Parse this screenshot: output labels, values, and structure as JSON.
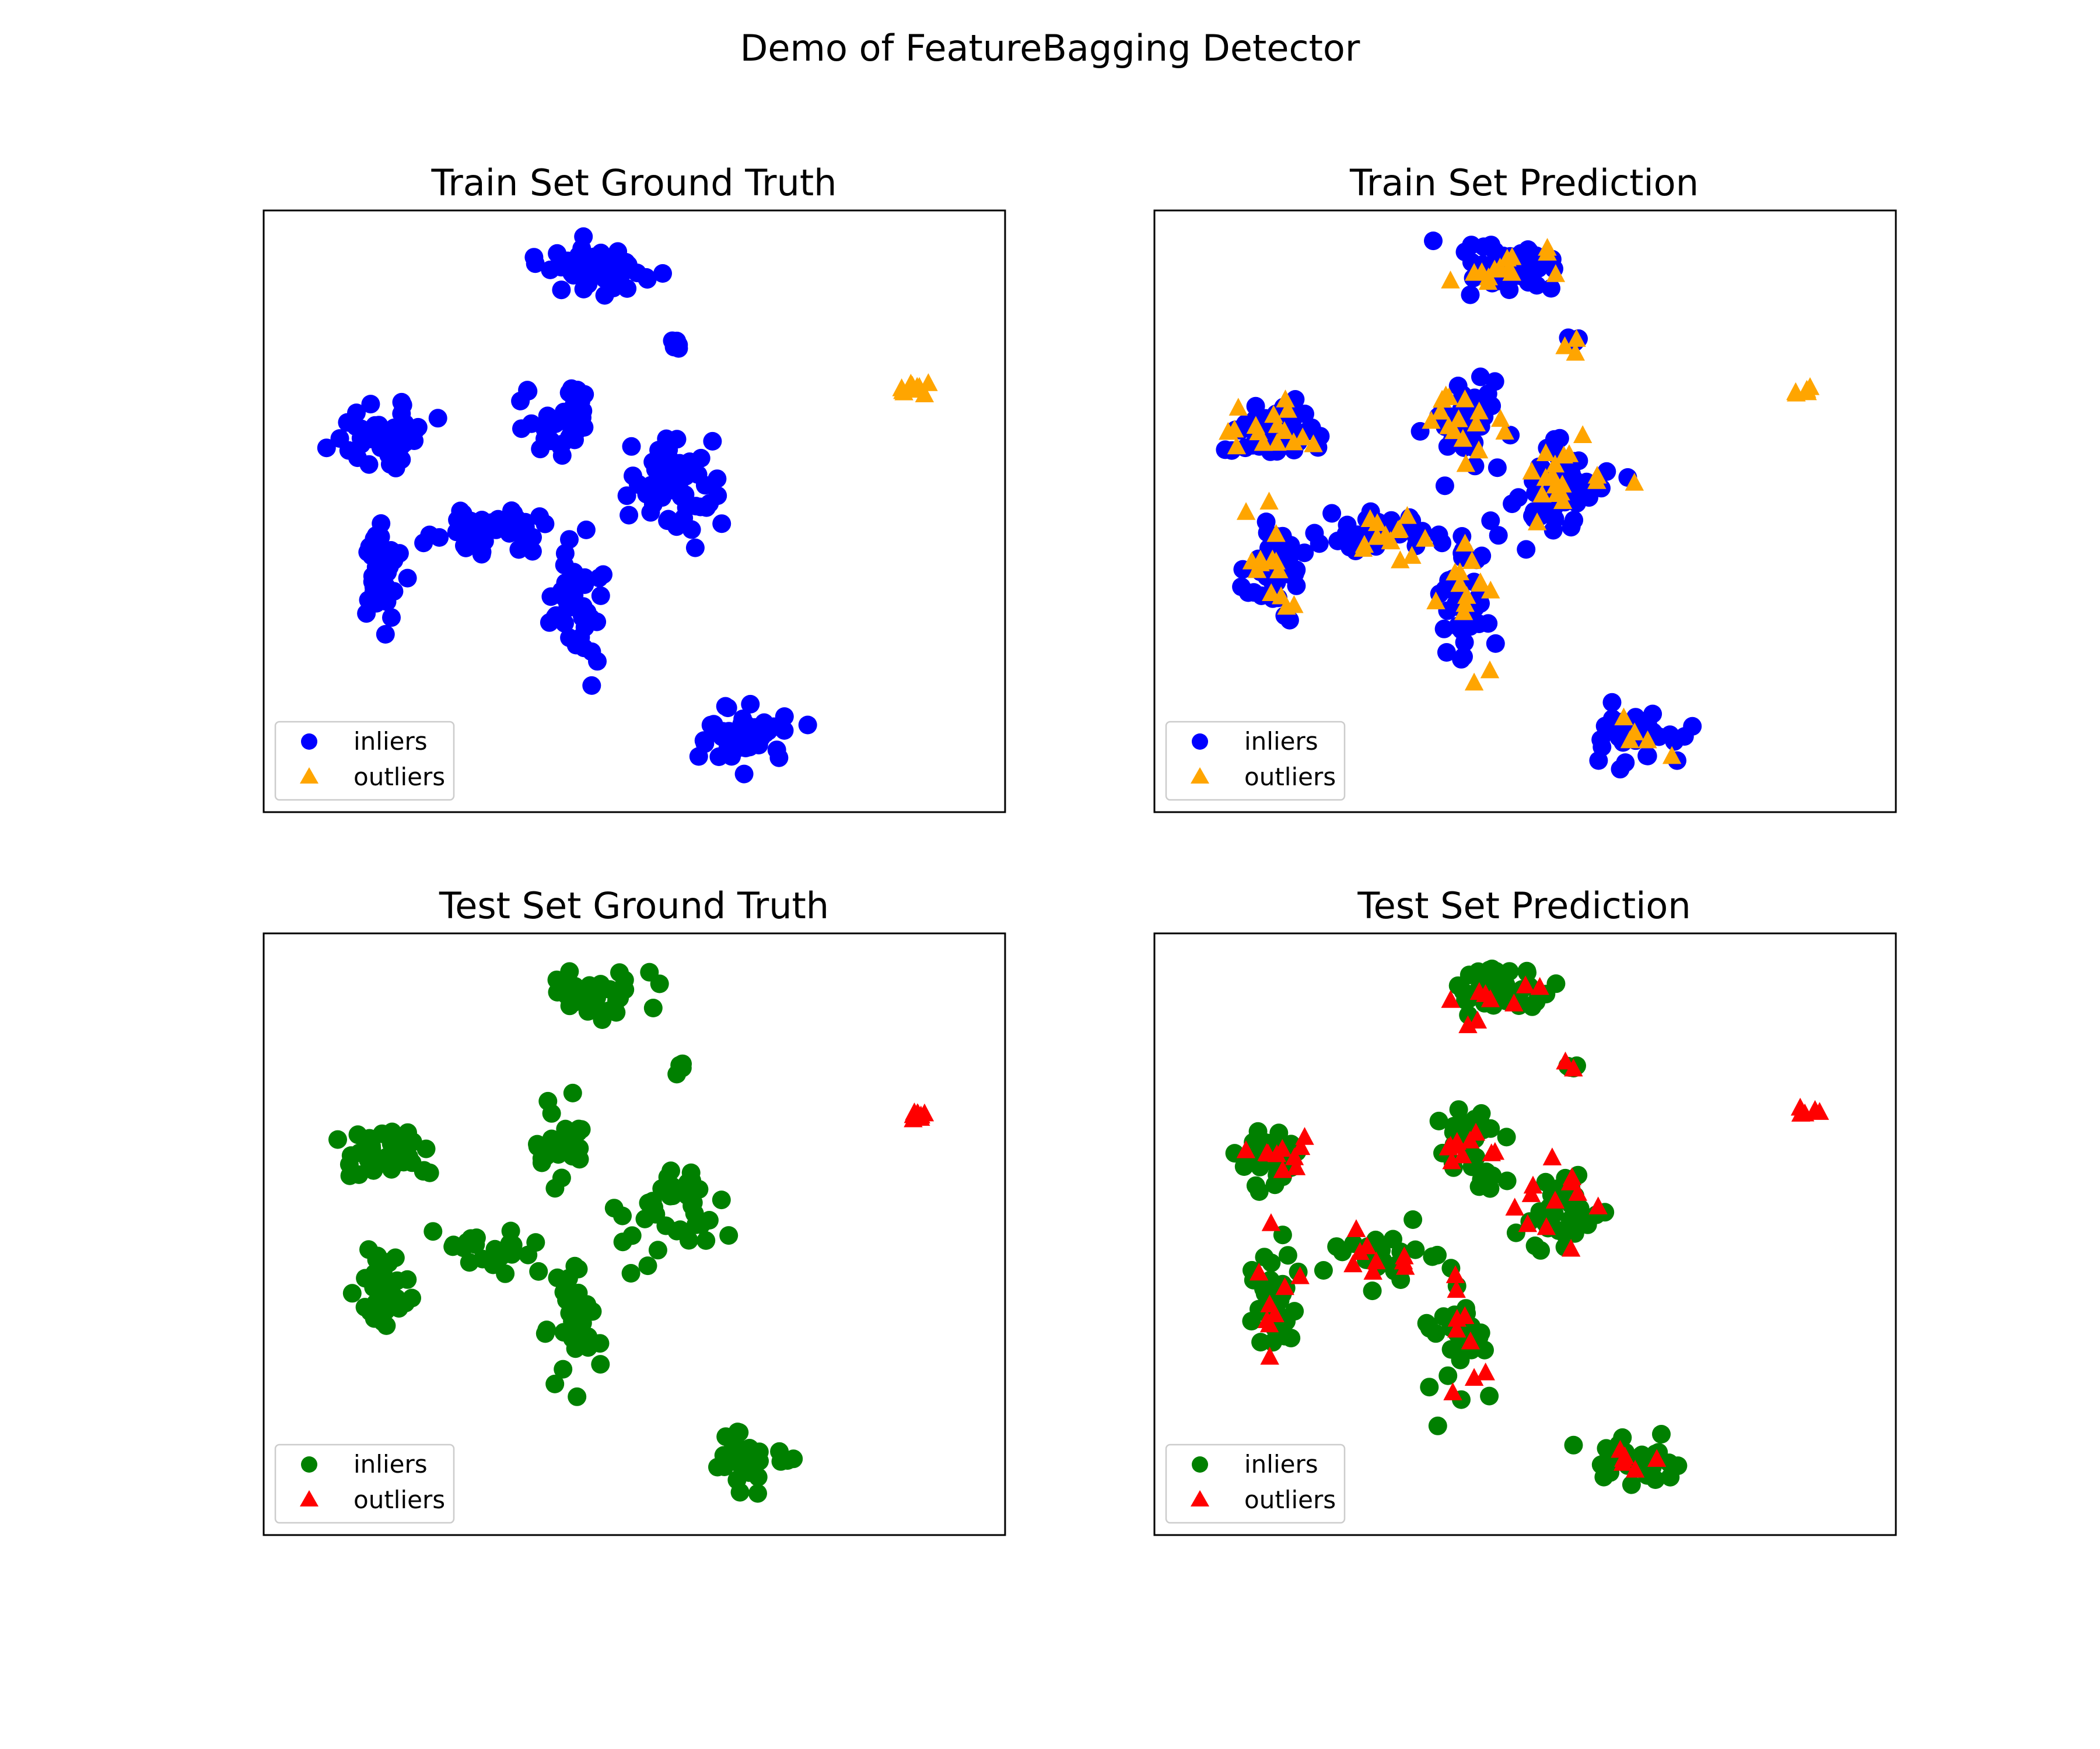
{
  "figure": {
    "suptitle": "Demo of FeatureBagging Detector"
  },
  "chart_data": [
    {
      "type": "scatter",
      "title": "Train Set Ground Truth",
      "xlabel": "",
      "ylabel": "",
      "xlim": [
        0,
        10
      ],
      "ylim": [
        0,
        10
      ],
      "grid": false,
      "axis_ticks": false,
      "legend": {
        "placement": "lower-left",
        "entries": [
          {
            "label": "inliers",
            "marker": "circle",
            "color": "#0000ff"
          },
          {
            "label": "outliers",
            "marker": "triangle",
            "color": "#ffa500"
          }
        ]
      },
      "series": [
        {
          "name": "inliers",
          "marker": "circle",
          "color": "#0000ff",
          "clusters": [
            {
              "cx": 4.5,
              "cy": 9.0,
              "sx": 0.45,
              "sy": 0.25,
              "n": 60
            },
            {
              "cx": 5.6,
              "cy": 7.8,
              "sx": 0.07,
              "sy": 0.1,
              "n": 5
            },
            {
              "cx": 1.6,
              "cy": 6.3,
              "sx": 0.45,
              "sy": 0.3,
              "n": 50
            },
            {
              "cx": 1.6,
              "cy": 4.0,
              "sx": 0.22,
              "sy": 0.55,
              "n": 50
            },
            {
              "cx": 4.0,
              "cy": 6.5,
              "sx": 0.3,
              "sy": 0.45,
              "n": 40
            },
            {
              "cx": 3.1,
              "cy": 4.7,
              "sx": 0.55,
              "sy": 0.3,
              "n": 40
            },
            {
              "cx": 5.5,
              "cy": 5.4,
              "sx": 0.45,
              "sy": 0.55,
              "n": 55
            },
            {
              "cx": 4.2,
              "cy": 3.5,
              "sx": 0.25,
              "sy": 0.7,
              "n": 40
            },
            {
              "cx": 6.5,
              "cy": 1.3,
              "sx": 0.35,
              "sy": 0.3,
              "n": 45
            }
          ]
        },
        {
          "name": "outliers",
          "marker": "triangle",
          "color": "#ffa500",
          "clusters": [
            {
              "cx": 8.8,
              "cy": 7.0,
              "sx": 0.12,
              "sy": 0.08,
              "n": 10
            }
          ]
        }
      ]
    },
    {
      "type": "scatter",
      "title": "Train Set Prediction",
      "xlabel": "",
      "ylabel": "",
      "xlim": [
        0,
        10
      ],
      "ylim": [
        0,
        10
      ],
      "grid": false,
      "axis_ticks": false,
      "legend": {
        "placement": "lower-left",
        "entries": [
          {
            "label": "inliers",
            "marker": "circle",
            "color": "#0000ff"
          },
          {
            "label": "outliers",
            "marker": "triangle",
            "color": "#ffa500"
          }
        ]
      },
      "series": [
        {
          "name": "inliers",
          "marker": "circle",
          "color": "#0000ff",
          "clusters": [
            {
              "cx": 4.7,
              "cy": 9.0,
              "sx": 0.45,
              "sy": 0.25,
              "n": 60
            },
            {
              "cx": 5.6,
              "cy": 7.8,
              "sx": 0.07,
              "sy": 0.1,
              "n": 5
            },
            {
              "cx": 1.6,
              "cy": 6.3,
              "sx": 0.35,
              "sy": 0.3,
              "n": 50
            },
            {
              "cx": 1.6,
              "cy": 4.0,
              "sx": 0.22,
              "sy": 0.55,
              "n": 50
            },
            {
              "cx": 4.2,
              "cy": 6.5,
              "sx": 0.3,
              "sy": 0.45,
              "n": 40
            },
            {
              "cx": 3.1,
              "cy": 4.7,
              "sx": 0.55,
              "sy": 0.3,
              "n": 40
            },
            {
              "cx": 5.5,
              "cy": 5.4,
              "sx": 0.45,
              "sy": 0.55,
              "n": 55
            },
            {
              "cx": 4.2,
              "cy": 3.5,
              "sx": 0.25,
              "sy": 0.7,
              "n": 40
            },
            {
              "cx": 6.5,
              "cy": 1.3,
              "sx": 0.35,
              "sy": 0.3,
              "n": 45
            }
          ]
        },
        {
          "name": "outliers",
          "marker": "triangle",
          "color": "#ffa500",
          "clusters": [
            {
              "cx": 4.7,
              "cy": 9.0,
              "sx": 0.45,
              "sy": 0.25,
              "n": 14
            },
            {
              "cx": 5.6,
              "cy": 7.8,
              "sx": 0.07,
              "sy": 0.1,
              "n": 3
            },
            {
              "cx": 1.6,
              "cy": 6.3,
              "sx": 0.35,
              "sy": 0.3,
              "n": 16
            },
            {
              "cx": 1.6,
              "cy": 4.0,
              "sx": 0.22,
              "sy": 0.55,
              "n": 14
            },
            {
              "cx": 4.2,
              "cy": 6.5,
              "sx": 0.3,
              "sy": 0.45,
              "n": 16
            },
            {
              "cx": 3.1,
              "cy": 4.7,
              "sx": 0.55,
              "sy": 0.3,
              "n": 14
            },
            {
              "cx": 5.5,
              "cy": 5.4,
              "sx": 0.45,
              "sy": 0.55,
              "n": 18
            },
            {
              "cx": 4.2,
              "cy": 3.5,
              "sx": 0.25,
              "sy": 0.7,
              "n": 14
            },
            {
              "cx": 6.5,
              "cy": 1.3,
              "sx": 0.35,
              "sy": 0.3,
              "n": 5
            },
            {
              "cx": 8.8,
              "cy": 7.0,
              "sx": 0.12,
              "sy": 0.08,
              "n": 5
            }
          ]
        }
      ]
    },
    {
      "type": "scatter",
      "title": "Test Set Ground Truth",
      "xlabel": "",
      "ylabel": "",
      "xlim": [
        0,
        10
      ],
      "ylim": [
        0,
        10
      ],
      "grid": false,
      "axis_ticks": false,
      "legend": {
        "placement": "lower-left",
        "entries": [
          {
            "label": "inliers",
            "marker": "circle",
            "color": "#008000"
          },
          {
            "label": "outliers",
            "marker": "triangle",
            "color": "#ff0000"
          }
        ]
      },
      "series": [
        {
          "name": "inliers",
          "marker": "circle",
          "color": "#008000",
          "clusters": [
            {
              "cx": 4.5,
              "cy": 9.0,
              "sx": 0.45,
              "sy": 0.25,
              "n": 40
            },
            {
              "cx": 5.6,
              "cy": 7.8,
              "sx": 0.07,
              "sy": 0.1,
              "n": 4
            },
            {
              "cx": 1.6,
              "cy": 6.3,
              "sx": 0.45,
              "sy": 0.3,
              "n": 35
            },
            {
              "cx": 1.6,
              "cy": 4.0,
              "sx": 0.22,
              "sy": 0.55,
              "n": 35
            },
            {
              "cx": 4.0,
              "cy": 6.5,
              "sx": 0.3,
              "sy": 0.45,
              "n": 30
            },
            {
              "cx": 3.1,
              "cy": 4.7,
              "sx": 0.55,
              "sy": 0.3,
              "n": 25
            },
            {
              "cx": 5.5,
              "cy": 5.4,
              "sx": 0.45,
              "sy": 0.55,
              "n": 40
            },
            {
              "cx": 4.2,
              "cy": 3.5,
              "sx": 0.25,
              "sy": 0.7,
              "n": 30
            },
            {
              "cx": 6.5,
              "cy": 1.3,
              "sx": 0.35,
              "sy": 0.3,
              "n": 30
            }
          ]
        },
        {
          "name": "outliers",
          "marker": "triangle",
          "color": "#ff0000",
          "clusters": [
            {
              "cx": 8.8,
              "cy": 7.0,
              "sx": 0.12,
              "sy": 0.08,
              "n": 8
            }
          ]
        }
      ]
    },
    {
      "type": "scatter",
      "title": "Test Set Prediction",
      "xlabel": "",
      "ylabel": "",
      "xlim": [
        0,
        10
      ],
      "ylim": [
        0,
        10
      ],
      "grid": false,
      "axis_ticks": false,
      "legend": {
        "placement": "lower-left",
        "entries": [
          {
            "label": "inliers",
            "marker": "circle",
            "color": "#008000"
          },
          {
            "label": "outliers",
            "marker": "triangle",
            "color": "#ff0000"
          }
        ]
      },
      "series": [
        {
          "name": "inliers",
          "marker": "circle",
          "color": "#008000",
          "clusters": [
            {
              "cx": 4.7,
              "cy": 9.0,
              "sx": 0.45,
              "sy": 0.25,
              "n": 40
            },
            {
              "cx": 5.6,
              "cy": 7.8,
              "sx": 0.07,
              "sy": 0.1,
              "n": 4
            },
            {
              "cx": 1.6,
              "cy": 6.3,
              "sx": 0.35,
              "sy": 0.3,
              "n": 35
            },
            {
              "cx": 1.6,
              "cy": 4.0,
              "sx": 0.22,
              "sy": 0.55,
              "n": 35
            },
            {
              "cx": 4.2,
              "cy": 6.5,
              "sx": 0.3,
              "sy": 0.45,
              "n": 30
            },
            {
              "cx": 3.1,
              "cy": 4.7,
              "sx": 0.55,
              "sy": 0.3,
              "n": 25
            },
            {
              "cx": 5.5,
              "cy": 5.4,
              "sx": 0.45,
              "sy": 0.55,
              "n": 40
            },
            {
              "cx": 4.2,
              "cy": 3.5,
              "sx": 0.25,
              "sy": 0.7,
              "n": 30
            },
            {
              "cx": 6.5,
              "cy": 1.3,
              "sx": 0.35,
              "sy": 0.3,
              "n": 30
            }
          ]
        },
        {
          "name": "outliers",
          "marker": "triangle",
          "color": "#ff0000",
          "clusters": [
            {
              "cx": 4.7,
              "cy": 9.0,
              "sx": 0.45,
              "sy": 0.25,
              "n": 9
            },
            {
              "cx": 5.6,
              "cy": 7.8,
              "sx": 0.07,
              "sy": 0.1,
              "n": 2
            },
            {
              "cx": 1.6,
              "cy": 6.3,
              "sx": 0.35,
              "sy": 0.3,
              "n": 10
            },
            {
              "cx": 1.6,
              "cy": 4.0,
              "sx": 0.22,
              "sy": 0.55,
              "n": 9
            },
            {
              "cx": 4.2,
              "cy": 6.5,
              "sx": 0.3,
              "sy": 0.45,
              "n": 10
            },
            {
              "cx": 3.1,
              "cy": 4.7,
              "sx": 0.55,
              "sy": 0.3,
              "n": 9
            },
            {
              "cx": 5.5,
              "cy": 5.4,
              "sx": 0.45,
              "sy": 0.55,
              "n": 12
            },
            {
              "cx": 4.2,
              "cy": 3.5,
              "sx": 0.25,
              "sy": 0.7,
              "n": 9
            },
            {
              "cx": 6.5,
              "cy": 1.3,
              "sx": 0.35,
              "sy": 0.3,
              "n": 6
            },
            {
              "cx": 8.8,
              "cy": 7.0,
              "sx": 0.12,
              "sy": 0.08,
              "n": 5
            }
          ]
        }
      ]
    }
  ]
}
